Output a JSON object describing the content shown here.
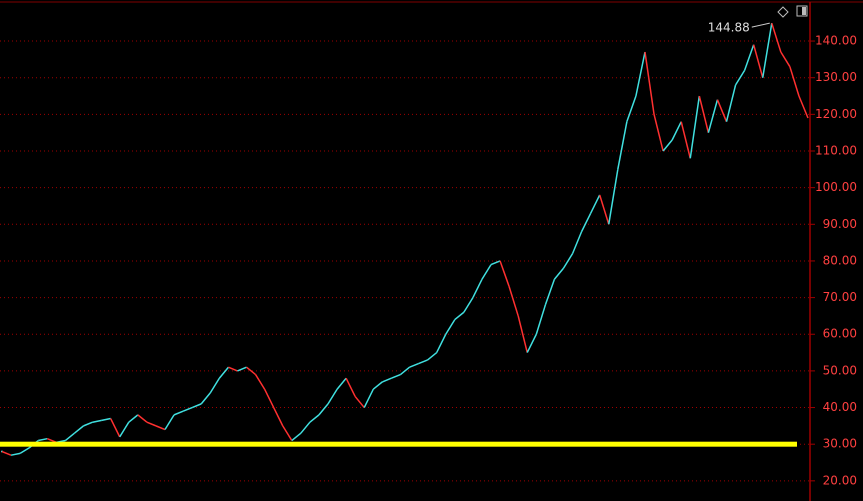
{
  "chart_data": {
    "type": "line",
    "values": [
      28,
      27,
      27.5,
      29,
      31,
      31.5,
      30.5,
      31,
      33,
      35,
      36,
      36.5,
      37,
      32,
      36,
      38,
      36,
      35,
      34,
      38,
      39,
      40,
      41,
      44,
      48,
      51,
      50,
      51,
      49,
      45,
      40,
      35,
      31,
      33,
      36,
      38,
      41,
      45,
      48,
      43,
      40,
      45,
      47,
      48,
      49,
      51,
      52,
      53,
      55,
      60,
      64,
      66,
      70,
      75,
      79,
      80,
      73,
      65,
      55,
      60,
      68,
      75,
      78,
      82,
      88,
      93,
      98,
      90,
      105,
      118,
      125,
      137,
      120,
      110,
      113,
      118,
      108,
      125,
      115,
      124,
      118,
      128,
      132,
      139,
      130,
      144.88,
      137,
      133,
      125,
      119
    ],
    "up_color": "#40e0e0",
    "down_color": "#ff3030",
    "ylim": [
      14.5,
      151.2
    ],
    "yticks": [
      {
        "value": 20,
        "label": "20.00"
      },
      {
        "value": 30,
        "label": "30.00"
      },
      {
        "value": 40,
        "label": "40.00"
      },
      {
        "value": 50,
        "label": "50.00"
      },
      {
        "value": 60,
        "label": "60.00"
      },
      {
        "value": 70,
        "label": "70.00"
      },
      {
        "value": 80,
        "label": "80.00"
      },
      {
        "value": 90,
        "label": "90.00"
      },
      {
        "value": 100,
        "label": "100.00"
      },
      {
        "value": 110,
        "label": "110.00"
      },
      {
        "value": 120,
        "label": "120.00"
      },
      {
        "value": 130,
        "label": "130.00"
      },
      {
        "value": 140,
        "label": "140.00"
      }
    ],
    "grid": true,
    "hline": {
      "value": 30,
      "color": "#ffff00"
    },
    "annotation": {
      "value": 144.88,
      "text": "144.88"
    }
  }
}
